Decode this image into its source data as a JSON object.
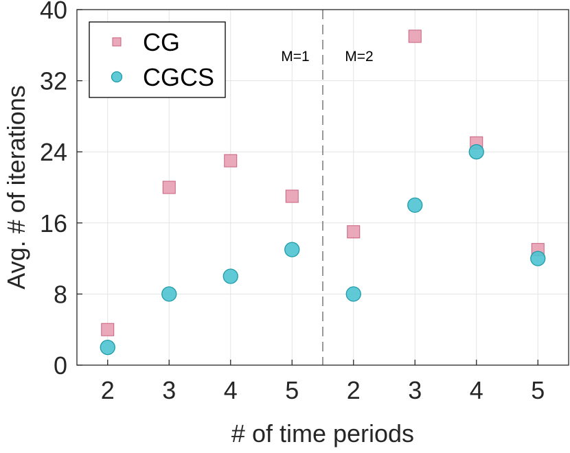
{
  "chart_data": {
    "type": "scatter",
    "title": "",
    "xlabel": "# of time periods",
    "ylabel": "Avg. # of iterations",
    "ylim": [
      0,
      40
    ],
    "yticks": [
      0,
      8,
      16,
      24,
      32,
      40
    ],
    "categories": [
      "2",
      "3",
      "4",
      "5",
      "2",
      "3",
      "4",
      "5"
    ],
    "grid": true,
    "legend_position": "top-left",
    "divider_after_index": 3,
    "annotations": [
      "M=1",
      "M=2"
    ],
    "series": [
      {
        "name": "CG",
        "marker": "square",
        "color": "#e8a0b4",
        "edge_color": "#c8607e",
        "values": [
          4,
          20,
          23,
          19,
          15,
          37,
          25,
          13
        ]
      },
      {
        "name": "CGCS",
        "marker": "circle",
        "color": "#4fc3d1",
        "edge_color": "#1e9aa8",
        "values": [
          2,
          8,
          10,
          13,
          8,
          18,
          24,
          12
        ]
      }
    ]
  }
}
